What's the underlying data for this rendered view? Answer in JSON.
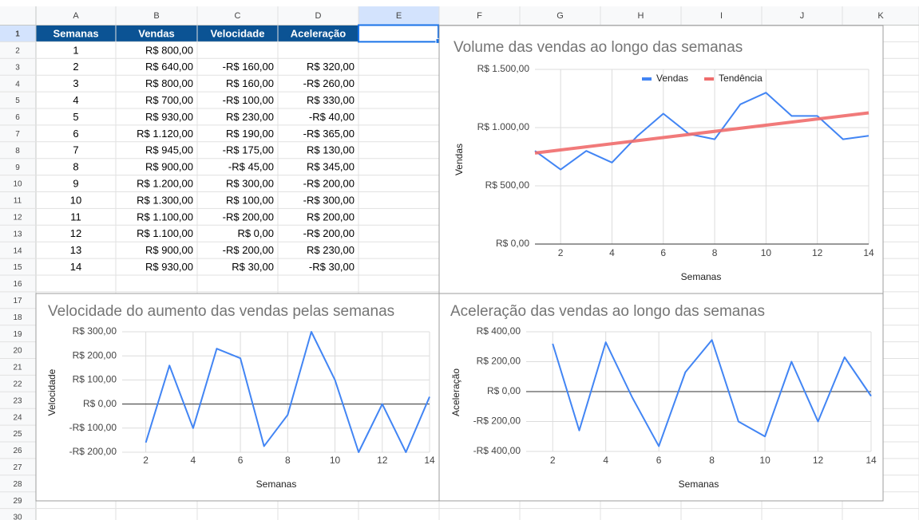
{
  "sheet": {
    "columns": [
      "A",
      "B",
      "C",
      "D",
      "E",
      "F",
      "G",
      "H",
      "I",
      "J",
      "K"
    ],
    "rows": [
      1,
      2,
      3,
      4,
      5,
      6,
      7,
      8,
      9,
      10,
      11,
      12,
      13,
      14,
      15,
      16,
      17,
      18,
      19,
      20,
      21,
      22,
      23,
      24,
      25,
      26,
      27,
      28,
      29,
      30
    ]
  },
  "table": {
    "header": [
      "Semanas",
      "Vendas",
      "Velocidade",
      "Aceleração"
    ],
    "rows": [
      [
        1,
        "R$ 800,00"
      ],
      [
        2,
        "R$ 640,00",
        "-R$ 160,00",
        "R$ 320,00"
      ],
      [
        3,
        "R$ 800,00",
        "R$ 160,00",
        "-R$ 260,00"
      ],
      [
        4,
        "R$ 700,00",
        "-R$ 100,00",
        "R$ 330,00"
      ],
      [
        5,
        "R$ 930,00",
        "R$ 230,00",
        "-R$ 40,00"
      ],
      [
        6,
        "R$ 1.120,00",
        "R$ 190,00",
        "-R$ 365,00"
      ],
      [
        7,
        "R$ 945,00",
        "-R$ 175,00",
        "R$ 130,00"
      ],
      [
        8,
        "R$ 900,00",
        "-R$ 45,00",
        "R$ 345,00"
      ],
      [
        9,
        "R$ 1.200,00",
        "R$ 300,00",
        "-R$ 200,00"
      ],
      [
        10,
        "R$ 1.300,00",
        "R$ 100,00",
        "-R$ 300,00"
      ],
      [
        11,
        "R$ 1.100,00",
        "-R$ 200,00",
        "R$ 200,00"
      ],
      [
        12,
        "R$ 1.100,00",
        "R$ 0,00",
        "-R$ 200,00"
      ],
      [
        13,
        "R$ 900,00",
        "-R$ 200,00",
        "R$ 230,00"
      ],
      [
        14,
        "R$ 930,00",
        "R$ 30,00",
        "-R$ 30,00"
      ]
    ]
  },
  "chart_data": [
    {
      "type": "line",
      "title": "Volume das vendas ao longo das semanas",
      "x_label": "Semanas",
      "y_label": "Vendas",
      "x": [
        1,
        2,
        3,
        4,
        5,
        6,
        7,
        8,
        9,
        10,
        11,
        12,
        13,
        14
      ],
      "series": [
        {
          "name": "Vendas",
          "color": "#4285f4",
          "values": [
            800,
            640,
            800,
            700,
            930,
            1120,
            945,
            900,
            1200,
            1300,
            1100,
            1100,
            900,
            930
          ]
        },
        {
          "name": "Tendência",
          "color": "#ef6c6c",
          "x": [
            1,
            14
          ],
          "values": [
            782,
            1127
          ]
        }
      ],
      "xlim": [
        1,
        14
      ],
      "xticks": [
        2,
        4,
        6,
        8,
        10,
        12,
        14
      ],
      "ylim": [
        0,
        1500
      ],
      "yticks": [
        {
          "value": 0,
          "label": "R$ 0,00"
        },
        {
          "value": 500,
          "label": "R$ 500,00"
        },
        {
          "value": 1000,
          "label": "R$ 1.000,00"
        },
        {
          "value": 1500,
          "label": "R$ 1.500,00"
        }
      ],
      "grid": true,
      "zero_line": true,
      "legend": "top"
    },
    {
      "type": "line",
      "title": "Velocidade do aumento das vendas pelas semanas",
      "x_label": "Semanas",
      "y_label": "Velocidade",
      "x": [
        2,
        3,
        4,
        5,
        6,
        7,
        8,
        9,
        10,
        11,
        12,
        13,
        14
      ],
      "series": [
        {
          "name": "Velocidade",
          "color": "#4285f4",
          "values": [
            -160,
            160,
            -100,
            230,
            190,
            -175,
            -45,
            300,
            100,
            -200,
            0,
            -200,
            30
          ]
        }
      ],
      "xlim": [
        1,
        14
      ],
      "xticks": [
        2,
        4,
        6,
        8,
        10,
        12,
        14
      ],
      "ylim": [
        -200,
        300
      ],
      "yticks": [
        {
          "value": -200,
          "label": "-R$ 200,00"
        },
        {
          "value": -100,
          "label": "-R$ 100,00"
        },
        {
          "value": 0,
          "label": "R$ 0,00"
        },
        {
          "value": 100,
          "label": "R$ 100,00"
        },
        {
          "value": 200,
          "label": "R$ 200,00"
        },
        {
          "value": 300,
          "label": "R$ 300,00"
        }
      ],
      "grid": true,
      "zero_line": true
    },
    {
      "type": "line",
      "title": "Aceleração das vendas ao longo das semanas",
      "x_label": "Semanas",
      "y_label": "Aceleração",
      "x": [
        2,
        3,
        4,
        5,
        6,
        7,
        8,
        9,
        10,
        11,
        12,
        13,
        14
      ],
      "series": [
        {
          "name": "Aceleração",
          "color": "#4285f4",
          "values": [
            320,
            -260,
            330,
            -40,
            -365,
            130,
            345,
            -200,
            -300,
            200,
            -200,
            230,
            -30
          ]
        }
      ],
      "xlim": [
        1,
        14
      ],
      "xticks": [
        2,
        4,
        6,
        8,
        10,
        12,
        14
      ],
      "ylim": [
        -400,
        400
      ],
      "yticks": [
        {
          "value": -400,
          "label": "-R$ 400,00"
        },
        {
          "value": -200,
          "label": "-R$ 200,00"
        },
        {
          "value": 0,
          "label": "R$ 0,00"
        },
        {
          "value": 200,
          "label": "R$ 200,00"
        },
        {
          "value": 400,
          "label": "R$ 400,00"
        }
      ],
      "grid": true,
      "zero_line": true
    }
  ]
}
